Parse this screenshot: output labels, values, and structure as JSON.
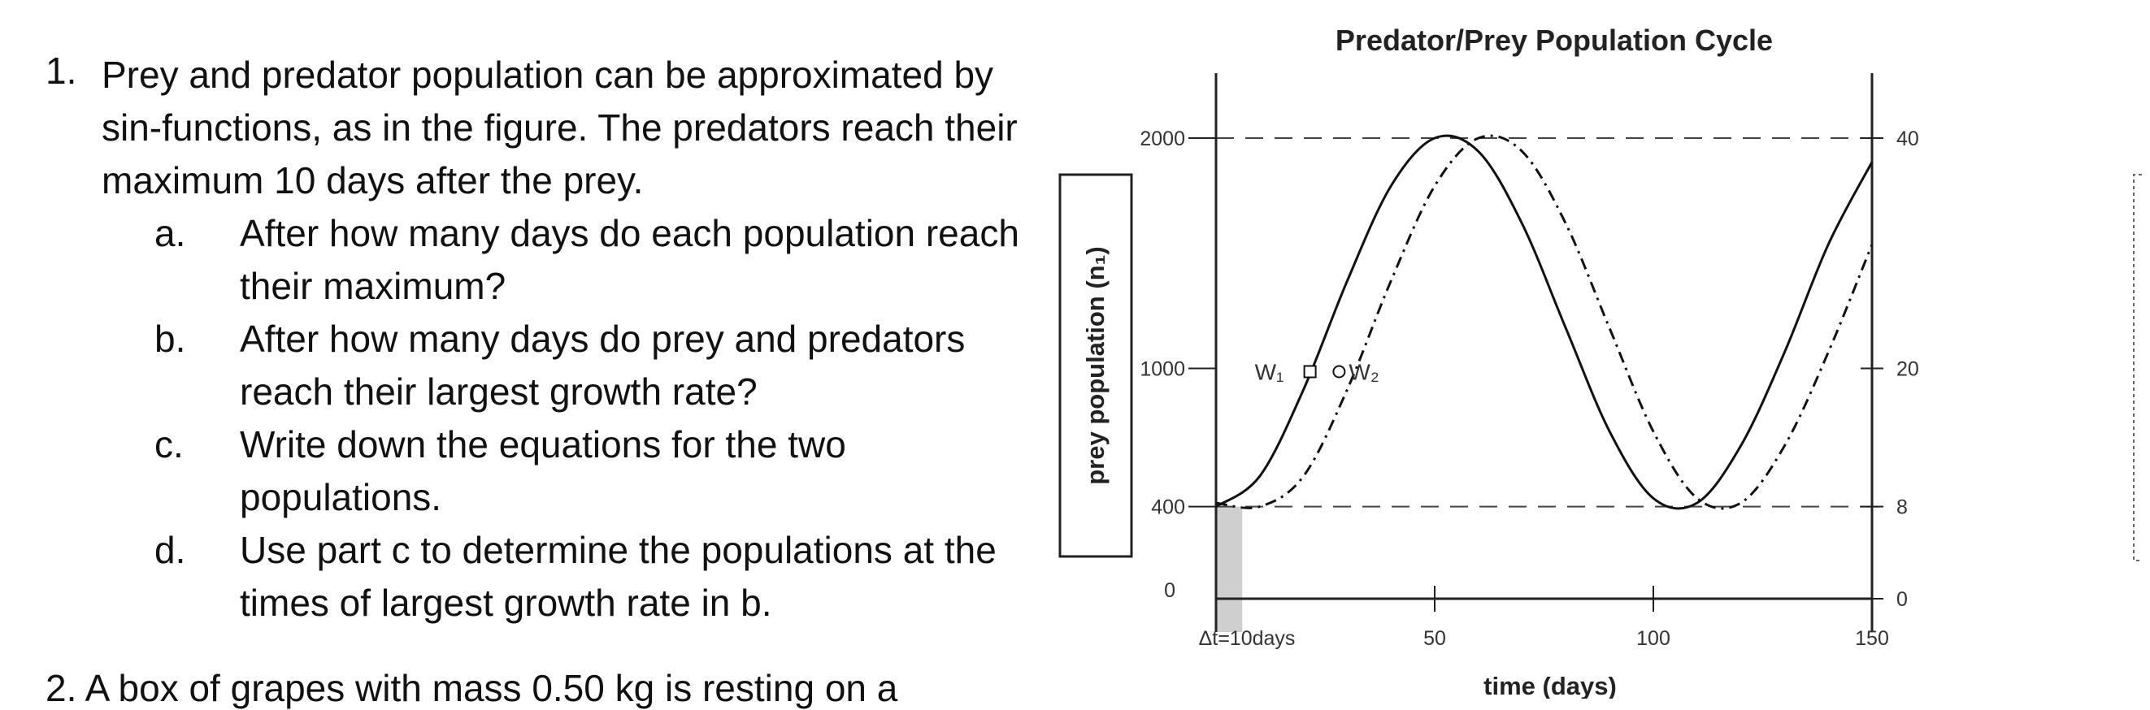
{
  "question1": {
    "number": "1.",
    "text": "Prey and predator population can be approximated by sin-functions, as in the figure. The predators reach their maximum 10 days after the prey.",
    "parts": [
      {
        "letter": "a.",
        "text": "After how many days do each population reach their maximum?"
      },
      {
        "letter": "b.",
        "text": "After how many days do prey and predators reach their largest growth rate?"
      },
      {
        "letter": "c.",
        "text": "Write down the equations for the two populations."
      },
      {
        "letter": "d.",
        "text": "Use part c to determine the populations at the times of largest growth rate in b."
      }
    ]
  },
  "question2_partial": "2.   A box of grapes with mass 0.50 kg is resting on a",
  "chart_data": {
    "type": "line",
    "title": "Predator/Prey Population Cycle",
    "xlabel": "time (days)",
    "ylabel": "prey population (n₁)",
    "xlim": [
      0,
      150
    ],
    "ylim": [
      0,
      2000
    ],
    "x_ticks": [
      "Δt=10days",
      "50",
      "100",
      "150"
    ],
    "x_tick_values": [
      0,
      50,
      100,
      150
    ],
    "y_ticks": [
      "0",
      "400",
      "1000",
      "2000"
    ],
    "y_tick_values": [
      0,
      400,
      1000,
      2000
    ],
    "right_ticks": [
      "0",
      "8",
      "20",
      "40"
    ],
    "right_tick_values": [
      0,
      400,
      1000,
      2000
    ],
    "shaded_interval_days": [
      0,
      6
    ],
    "dashed_reference_levels": [
      400,
      2000
    ],
    "series": [
      {
        "style": "solid",
        "x": [
          0,
          10,
          20,
          30,
          40,
          50,
          60,
          70,
          80,
          90,
          100,
          110,
          120,
          130,
          140,
          150
        ],
        "y": [
          400,
          532,
          908,
          1380,
          1792,
          2000,
          1942,
          1628,
          1174,
          726,
          436,
          416,
          664,
          1070,
          1538,
          1896
        ]
      },
      {
        "style": "dashdot",
        "x": [
          0,
          10,
          20,
          30,
          40,
          50,
          60,
          70,
          80,
          90,
          100,
          110,
          120,
          130,
          140,
          150
        ],
        "y": [
          416,
          400,
          532,
          908,
          1380,
          1792,
          2000,
          1942,
          1628,
          1174,
          726,
          436,
          416,
          664,
          1070,
          1538
        ]
      }
    ],
    "markers": [
      {
        "label": "W₁",
        "shape": "square",
        "series": 0,
        "x": 20,
        "y": 1000
      },
      {
        "label": "W₂",
        "shape": "circle",
        "series": 1,
        "x": 30,
        "y": 1000
      }
    ],
    "colors": {
      "axis": "#222222",
      "line": "#111111",
      "shade": "#cfcfcf",
      "grid": "#444444"
    }
  }
}
